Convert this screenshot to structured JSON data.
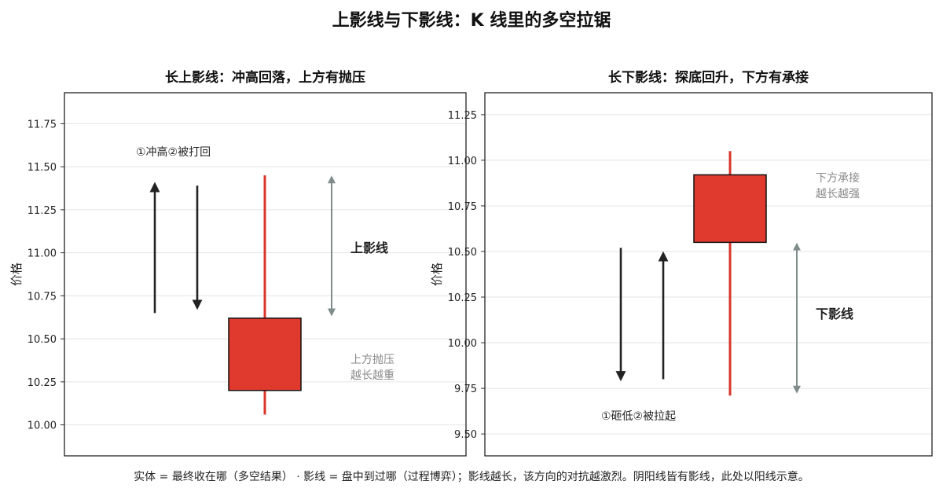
{
  "title": "上影线与下影线：K 线里的多空拉锯",
  "footer": "实体 = 最终收在哪（多空结果）  · 影线 = 盘中到过哪（过程博弈）；影线越长，该方向的对抗越激烈。阴阳线皆有影线，此处以阳线示意。",
  "colors": {
    "candle": "#e03a2f",
    "candle_edge": "#111111",
    "wick": "#d8352a",
    "arrow_dark": "#222222",
    "arrow_gray": "#7f8c8a",
    "grid": "#e5e5e5",
    "note_gray": "#8a8a8a"
  },
  "chart_data": [
    {
      "type": "candlestick",
      "title": "长上影线：冲高回落，上方有抛压",
      "ylabel": "价格",
      "ylim": [
        9.82,
        11.93
      ],
      "yticks": [
        "10.00",
        "10.25",
        "10.50",
        "10.75",
        "11.00",
        "11.25",
        "11.50",
        "11.75"
      ],
      "grid": true,
      "candle": {
        "open": 10.2,
        "close": 10.62,
        "high": 11.45,
        "low": 10.06
      },
      "move_arrows": [
        {
          "from": 10.65,
          "to": 11.4,
          "direction": "up"
        },
        {
          "from": 11.39,
          "to": 10.68,
          "direction": "down"
        }
      ],
      "span_arrow": {
        "from": 10.64,
        "to": 11.44,
        "direction": "both"
      },
      "annotations": [
        {
          "role": "step",
          "lines": [
            "①冲高②被打回"
          ]
        },
        {
          "role": "label",
          "lines": [
            "上影线"
          ]
        },
        {
          "role": "note",
          "lines": [
            "上方抛压",
            "越长越重"
          ]
        }
      ]
    },
    {
      "type": "candlestick",
      "title": "长下影线：探底回升，下方有承接",
      "ylabel": "价格",
      "ylim": [
        9.38,
        11.37
      ],
      "yticks": [
        "9.50",
        "9.75",
        "10.00",
        "10.25",
        "10.50",
        "10.75",
        "11.00",
        "11.25"
      ],
      "grid": true,
      "candle": {
        "open": 10.55,
        "close": 10.92,
        "high": 11.05,
        "low": 9.71
      },
      "move_arrows": [
        {
          "from": 10.52,
          "to": 9.8,
          "direction": "down"
        },
        {
          "from": 9.8,
          "to": 10.49,
          "direction": "up"
        }
      ],
      "span_arrow": {
        "from": 9.73,
        "to": 10.54,
        "direction": "both"
      },
      "annotations": [
        {
          "role": "step",
          "lines": [
            "①砸低②被拉起"
          ]
        },
        {
          "role": "label",
          "lines": [
            "下影线"
          ]
        },
        {
          "role": "note",
          "lines": [
            "下方承接",
            "越长越强"
          ]
        }
      ]
    }
  ]
}
